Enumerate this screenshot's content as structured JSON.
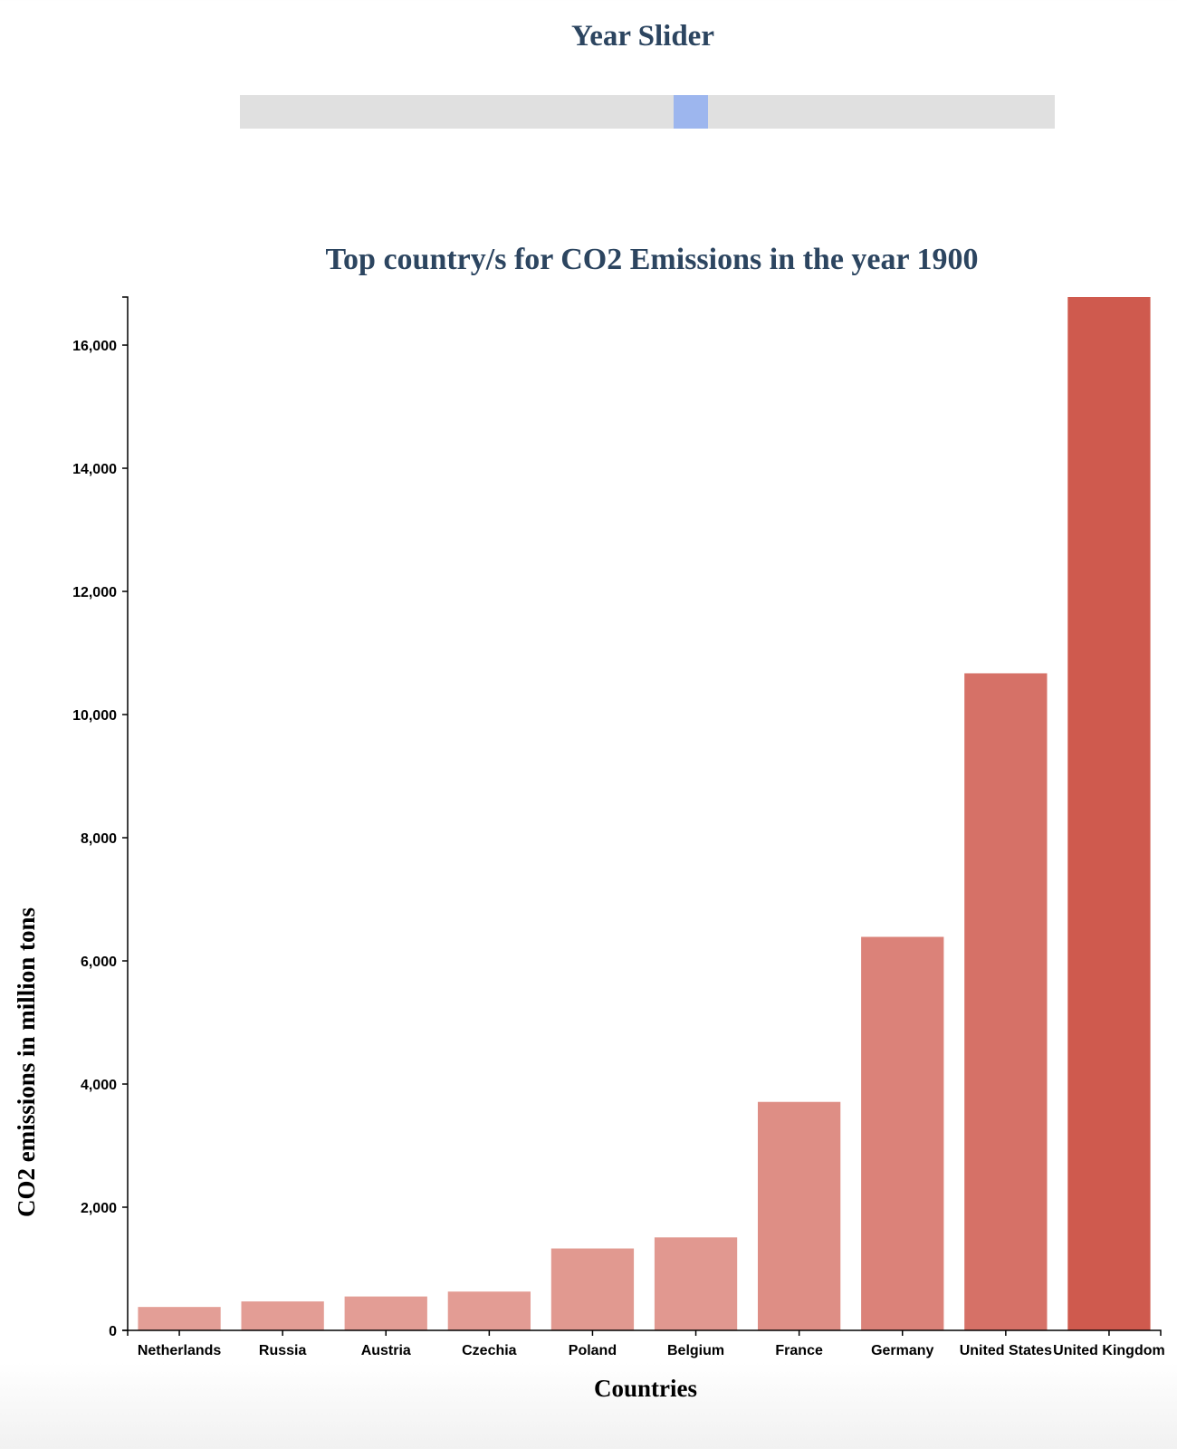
{
  "slider": {
    "title": "Year Slider",
    "value_fraction": 0.553
  },
  "chart_data": {
    "type": "bar",
    "title": "Top country/s for CO2 Emissions in the year 1900",
    "xlabel": "Countries",
    "ylabel": "CO2 emissions in million tons",
    "categories": [
      "Netherlands",
      "Russia",
      "Austria",
      "Czechia",
      "Poland",
      "Belgium",
      "France",
      "Germany",
      "United States",
      "United Kingdom"
    ],
    "values": [
      380,
      470,
      550,
      630,
      1330,
      1510,
      3710,
      6390,
      10670,
      16780
    ],
    "ylim": [
      0,
      16780
    ],
    "yticks": [
      0,
      2000,
      4000,
      6000,
      8000,
      10000,
      12000,
      14000,
      16000
    ],
    "ytick_labels": [
      "0",
      "2,000",
      "4,000",
      "6,000",
      "8,000",
      "10,000",
      "12,000",
      "14,000",
      "16,000"
    ],
    "grid": false,
    "color_light": "#e39e96",
    "color_dark": "#cf5a4e"
  }
}
